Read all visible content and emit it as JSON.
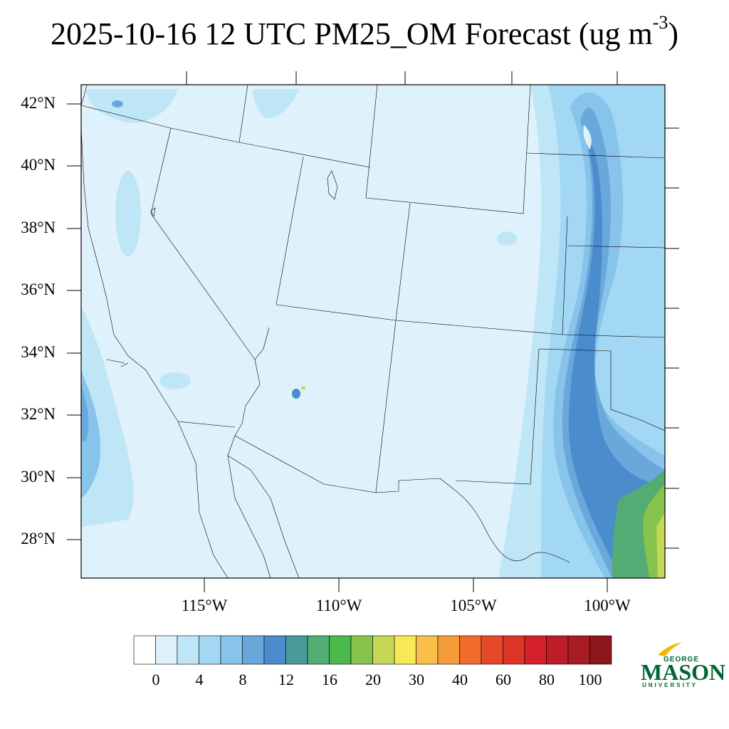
{
  "title": {
    "text": "2025-10-16 12 UTC PM25_OM Forecast (ug m",
    "superscript": "-3",
    "suffix": ")"
  },
  "lat_labels": [
    "42°N",
    "40°N",
    "38°N",
    "36°N",
    "34°N",
    "32°N",
    "30°N",
    "28°N"
  ],
  "lon_labels": [
    "115°W",
    "110°W",
    "105°W",
    "100°W"
  ],
  "colorbar": {
    "labels": [
      "0",
      "4",
      "8",
      "12",
      "16",
      "20",
      "30",
      "40",
      "60",
      "80",
      "100"
    ],
    "colors": [
      "#ffffff",
      "#dff2fb",
      "#bfe6f7",
      "#a2d8f3",
      "#87c3ea",
      "#6aa8dc",
      "#4a8ccc",
      "#4a9a9a",
      "#52ac74",
      "#4cb94c",
      "#86c34c",
      "#c4d855",
      "#f7e858",
      "#f8c04a",
      "#f59c3a",
      "#f26a2c",
      "#e6492a",
      "#df3528",
      "#d42029",
      "#be1c26",
      "#a81b22",
      "#8c181e"
    ]
  },
  "logo": {
    "line1": "GEORGE",
    "line2": "MASON",
    "line3": "UNIVERSITY"
  },
  "colors": {
    "background_field": "#dff2fb",
    "frame": "#000000"
  }
}
